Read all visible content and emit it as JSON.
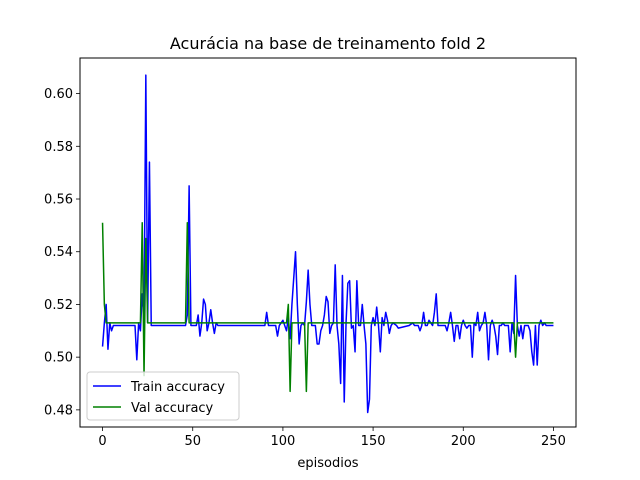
{
  "chart_data": {
    "type": "line",
    "title": "Acurácia na base de treinamento fold 2",
    "xlabel": "episodios",
    "ylabel": "",
    "xlim": [
      -12.5,
      262.5
    ],
    "ylim": [
      0.4735,
      0.6135
    ],
    "xticks": [
      0,
      50,
      100,
      150,
      200,
      250
    ],
    "yticks": [
      0.48,
      0.5,
      0.52,
      0.54,
      0.56,
      0.58,
      0.6
    ],
    "ytick_labels": [
      "0.48",
      "0.50",
      "0.52",
      "0.54",
      "0.56",
      "0.58",
      "0.60"
    ],
    "legend_position": "lower-left",
    "grid": false,
    "series": [
      {
        "name": "Train accuracy",
        "color": "#0000ff",
        "points": [
          [
            0,
            0.504
          ],
          [
            1,
            0.513
          ],
          [
            2,
            0.52
          ],
          [
            3,
            0.503
          ],
          [
            4,
            0.513
          ],
          [
            5,
            0.51
          ],
          [
            6,
            0.512
          ],
          [
            10,
            0.512
          ],
          [
            15,
            0.512
          ],
          [
            18,
            0.512
          ],
          [
            19,
            0.499
          ],
          [
            20,
            0.513
          ],
          [
            21,
            0.51
          ],
          [
            22,
            0.524
          ],
          [
            23,
            0.515
          ],
          [
            24,
            0.607
          ],
          [
            25,
            0.513
          ],
          [
            26,
            0.574
          ],
          [
            27,
            0.512
          ],
          [
            30,
            0.512
          ],
          [
            40,
            0.512
          ],
          [
            46,
            0.512
          ],
          [
            47,
            0.516
          ],
          [
            48,
            0.565
          ],
          [
            49,
            0.512
          ],
          [
            52,
            0.512
          ],
          [
            53,
            0.516
          ],
          [
            54,
            0.508
          ],
          [
            55,
            0.513
          ],
          [
            56,
            0.522
          ],
          [
            57,
            0.52
          ],
          [
            58,
            0.51
          ],
          [
            59,
            0.513
          ],
          [
            60,
            0.518
          ],
          [
            61,
            0.513
          ],
          [
            62,
            0.509
          ],
          [
            63,
            0.513
          ],
          [
            64,
            0.512
          ],
          [
            70,
            0.512
          ],
          [
            80,
            0.512
          ],
          [
            90,
            0.512
          ],
          [
            91,
            0.517
          ],
          [
            92,
            0.512
          ],
          [
            96,
            0.512
          ],
          [
            97,
            0.508
          ],
          [
            98,
            0.512
          ],
          [
            100,
            0.514
          ],
          [
            101,
            0.512
          ],
          [
            102,
            0.51
          ],
          [
            103,
            0.515
          ],
          [
            104,
            0.507
          ],
          [
            105,
            0.52
          ],
          [
            106,
            0.53
          ],
          [
            107,
            0.54
          ],
          [
            108,
            0.52
          ],
          [
            109,
            0.505
          ],
          [
            110,
            0.512
          ],
          [
            111,
            0.513
          ],
          [
            112,
            0.512
          ],
          [
            113,
            0.521
          ],
          [
            114,
            0.533
          ],
          [
            115,
            0.52
          ],
          [
            116,
            0.512
          ],
          [
            117,
            0.512
          ],
          [
            118,
            0.512
          ],
          [
            119,
            0.505
          ],
          [
            120,
            0.505
          ],
          [
            121,
            0.51
          ],
          [
            122,
            0.512
          ],
          [
            123,
            0.516
          ],
          [
            124,
            0.523
          ],
          [
            125,
            0.521
          ],
          [
            126,
            0.509
          ],
          [
            127,
            0.512
          ],
          [
            128,
            0.513
          ],
          [
            129,
            0.535
          ],
          [
            130,
            0.512
          ],
          [
            131,
            0.505
          ],
          [
            132,
            0.49
          ],
          [
            133,
            0.531
          ],
          [
            134,
            0.483
          ],
          [
            135,
            0.513
          ],
          [
            136,
            0.528
          ],
          [
            137,
            0.529
          ],
          [
            138,
            0.511
          ],
          [
            139,
            0.512
          ],
          [
            140,
            0.502
          ],
          [
            141,
            0.529
          ],
          [
            142,
            0.512
          ],
          [
            143,
            0.512
          ],
          [
            144,
            0.52
          ],
          [
            145,
            0.512
          ],
          [
            146,
            0.505
          ],
          [
            147,
            0.479
          ],
          [
            148,
            0.484
          ],
          [
            149,
            0.512
          ],
          [
            150,
            0.515
          ],
          [
            151,
            0.512
          ],
          [
            152,
            0.519
          ],
          [
            153,
            0.512
          ],
          [
            154,
            0.502
          ],
          [
            155,
            0.515
          ],
          [
            156,
            0.512
          ],
          [
            157,
            0.517
          ],
          [
            158,
            0.514
          ],
          [
            159,
            0.509
          ],
          [
            160,
            0.512
          ],
          [
            161,
            0.513
          ],
          [
            163,
            0.512
          ],
          [
            164,
            0.511
          ],
          [
            170,
            0.512
          ],
          [
            172,
            0.513
          ],
          [
            173,
            0.512
          ],
          [
            175,
            0.512
          ],
          [
            176,
            0.51
          ],
          [
            177,
            0.512
          ],
          [
            178,
            0.517
          ],
          [
            179,
            0.512
          ],
          [
            180,
            0.512
          ],
          [
            181,
            0.514
          ],
          [
            183,
            0.512
          ],
          [
            184,
            0.517
          ],
          [
            185,
            0.524
          ],
          [
            186,
            0.512
          ],
          [
            187,
            0.512
          ],
          [
            188,
            0.512
          ],
          [
            190,
            0.512
          ],
          [
            191,
            0.51
          ],
          [
            192,
            0.513
          ],
          [
            193,
            0.517
          ],
          [
            194,
            0.512
          ],
          [
            195,
            0.506
          ],
          [
            196,
            0.512
          ],
          [
            197,
            0.512
          ],
          [
            198,
            0.507
          ],
          [
            199,
            0.512
          ],
          [
            200,
            0.514
          ],
          [
            201,
            0.512
          ],
          [
            202,
            0.511
          ],
          [
            203,
            0.512
          ],
          [
            204,
            0.512
          ],
          [
            205,
            0.5
          ],
          [
            206,
            0.513
          ],
          [
            207,
            0.512
          ],
          [
            208,
            0.517
          ],
          [
            209,
            0.51
          ],
          [
            210,
            0.512
          ],
          [
            211,
            0.513
          ],
          [
            212,
            0.517
          ],
          [
            213,
            0.512
          ],
          [
            214,
            0.499
          ],
          [
            215,
            0.512
          ],
          [
            216,
            0.514
          ],
          [
            217,
            0.512
          ],
          [
            218,
            0.508
          ],
          [
            219,
            0.501
          ],
          [
            220,
            0.512
          ],
          [
            221,
            0.512
          ],
          [
            222,
            0.513
          ],
          [
            223,
            0.512
          ],
          [
            224,
            0.512
          ],
          [
            225,
            0.512
          ],
          [
            226,
            0.502
          ],
          [
            227,
            0.513
          ],
          [
            228,
            0.509
          ],
          [
            229,
            0.531
          ],
          [
            230,
            0.512
          ],
          [
            231,
            0.508
          ],
          [
            232,
            0.512
          ],
          [
            233,
            0.507
          ],
          [
            234,
            0.512
          ],
          [
            235,
            0.512
          ],
          [
            236,
            0.512
          ],
          [
            237,
            0.51
          ],
          [
            238,
            0.502
          ],
          [
            239,
            0.497
          ],
          [
            240,
            0.512
          ],
          [
            241,
            0.497
          ],
          [
            242,
            0.512
          ],
          [
            243,
            0.514
          ],
          [
            244,
            0.512
          ],
          [
            245,
            0.513
          ],
          [
            246,
            0.512
          ],
          [
            247,
            0.512
          ],
          [
            248,
            0.512
          ],
          [
            249,
            0.512
          ],
          [
            250,
            0.512
          ]
        ]
      },
      {
        "name": "Val accuracy",
        "color": "#008000",
        "points": [
          [
            0,
            0.551
          ],
          [
            1,
            0.52
          ],
          [
            2,
            0.513
          ],
          [
            5,
            0.513
          ],
          [
            10,
            0.513
          ],
          [
            15,
            0.513
          ],
          [
            20,
            0.513
          ],
          [
            21,
            0.513
          ],
          [
            22,
            0.551
          ],
          [
            23,
            0.493
          ],
          [
            24,
            0.545
          ],
          [
            25,
            0.513
          ],
          [
            30,
            0.513
          ],
          [
            40,
            0.513
          ],
          [
            46,
            0.513
          ],
          [
            47,
            0.551
          ],
          [
            48,
            0.513
          ],
          [
            50,
            0.513
          ],
          [
            60,
            0.513
          ],
          [
            70,
            0.513
          ],
          [
            80,
            0.513
          ],
          [
            90,
            0.513
          ],
          [
            100,
            0.513
          ],
          [
            102,
            0.513
          ],
          [
            103,
            0.52
          ],
          [
            104,
            0.487
          ],
          [
            105,
            0.513
          ],
          [
            106,
            0.513
          ],
          [
            110,
            0.513
          ],
          [
            112,
            0.513
          ],
          [
            113,
            0.487
          ],
          [
            114,
            0.513
          ],
          [
            120,
            0.513
          ],
          [
            130,
            0.513
          ],
          [
            140,
            0.513
          ],
          [
            150,
            0.513
          ],
          [
            160,
            0.513
          ],
          [
            170,
            0.513
          ],
          [
            180,
            0.513
          ],
          [
            190,
            0.513
          ],
          [
            200,
            0.513
          ],
          [
            210,
            0.513
          ],
          [
            220,
            0.513
          ],
          [
            228,
            0.513
          ],
          [
            229,
            0.5
          ],
          [
            230,
            0.513
          ],
          [
            240,
            0.513
          ],
          [
            250,
            0.513
          ]
        ]
      }
    ]
  }
}
